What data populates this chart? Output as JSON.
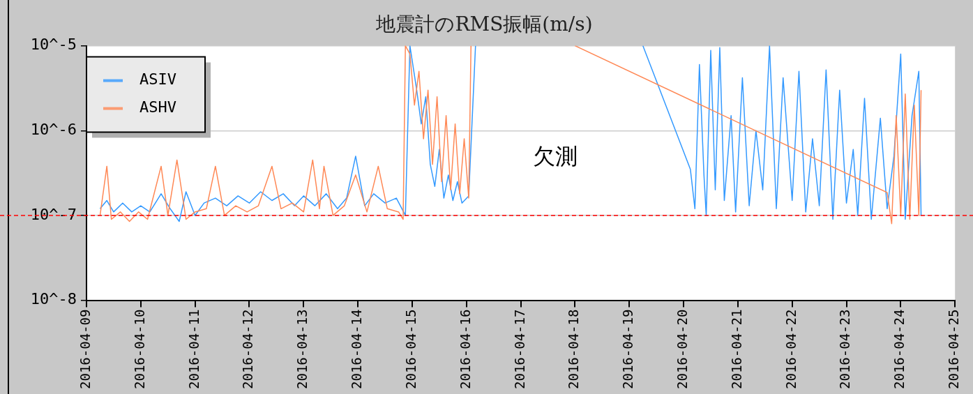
{
  "chart_data": {
    "type": "line",
    "title": "地震計のRMS振幅(m/s)",
    "xlim": [
      "2016-04-09",
      "2016-04-25"
    ],
    "xticks": [
      "2016-04-09",
      "2016-04-10",
      "2016-04-11",
      "2016-04-12",
      "2016-04-13",
      "2016-04-14",
      "2016-04-15",
      "2016-04-16",
      "2016-04-17",
      "2016-04-18",
      "2016-04-19",
      "2016-04-20",
      "2016-04-21",
      "2016-04-22",
      "2016-04-23",
      "2016-04-24",
      "2016-04-25"
    ],
    "ylim": [
      1e-08,
      1e-05
    ],
    "yticks": [
      {
        "value": 1e-08,
        "label": "10^-8"
      },
      {
        "value": 1e-07,
        "label": "10^-7"
      },
      {
        "value": 1e-06,
        "label": "10^-6"
      },
      {
        "value": 1e-05,
        "label": "10^-5"
      }
    ],
    "log": "y",
    "grid": "y",
    "legend": "top left",
    "marker": "none",
    "line_style": "solid",
    "series": [
      {
        "name": "ASIV",
        "color": "#3399ff",
        "x": [
          "2016-04-09T06:00",
          "2016-04-09T09:00",
          "2016-04-09T12:00",
          "2016-04-09T16:00",
          "2016-04-09T20:00",
          "2016-04-10T00:00",
          "2016-04-10T04:00",
          "2016-04-10T09:00",
          "2016-04-10T13:00",
          "2016-04-10T17:00",
          "2016-04-10T20:00",
          "2016-04-11T00:00",
          "2016-04-11T04:00",
          "2016-04-11T09:00",
          "2016-04-11T14:00",
          "2016-04-11T19:00",
          "2016-04-12T00:00",
          "2016-04-12T05:00",
          "2016-04-12T10:00",
          "2016-04-12T15:00",
          "2016-04-12T20:00",
          "2016-04-13T00:00",
          "2016-04-13T05:00",
          "2016-04-13T10:00",
          "2016-04-13T15:00",
          "2016-04-13T19:00",
          "2016-04-13T23:00",
          "2016-04-14T03:00",
          "2016-04-14T07:00",
          "2016-04-14T12:00",
          "2016-04-14T17:00",
          "2016-04-14T21:00",
          "2016-04-14T23:00",
          "2016-04-15T02:00",
          "2016-04-15T04:00",
          "2016-04-15T06:00",
          "2016-04-15T08:00",
          "2016-04-15T10:00",
          "2016-04-15T12:00",
          "2016-04-15T14:00",
          "2016-04-15T16:00",
          "2016-04-15T18:00",
          "2016-04-15T20:00",
          "2016-04-15T22:00",
          "2016-04-16T01:00",
          "2016-04-16T04:00",
          "2016-04-17T12:00",
          "2016-04-19T06:00",
          "2016-04-20T03:00",
          "2016-04-20T05:00",
          "2016-04-20T07:00",
          "2016-04-20T09:00",
          "2016-04-20T10:00",
          "2016-04-20T12:00",
          "2016-04-20T14:00",
          "2016-04-20T16:00",
          "2016-04-20T18:00",
          "2016-04-20T21:00",
          "2016-04-20T23:00",
          "2016-04-21T02:00",
          "2016-04-21T05:00",
          "2016-04-21T08:00",
          "2016-04-21T11:00",
          "2016-04-21T14:00",
          "2016-04-21T17:00",
          "2016-04-21T20:00",
          "2016-04-22T00:00",
          "2016-04-22T03:00",
          "2016-04-22T06:00",
          "2016-04-22T09:00",
          "2016-04-22T12:00",
          "2016-04-22T15:00",
          "2016-04-22T18:00",
          "2016-04-22T21:00",
          "2016-04-23T00:00",
          "2016-04-23T03:00",
          "2016-04-23T05:00",
          "2016-04-23T08:00",
          "2016-04-23T11:00",
          "2016-04-23T15:00",
          "2016-04-23T18:00",
          "2016-04-23T21:00",
          "2016-04-24T00:00",
          "2016-04-24T02:00",
          "2016-04-24T05:00",
          "2016-04-24T08:00",
          "2016-04-24T09:00"
        ],
        "values": [
          1.2e-07,
          1.5e-07,
          1.1e-07,
          1.4e-07,
          1.1e-07,
          1.3e-07,
          1.1e-07,
          1.8e-07,
          1.2e-07,
          8.5e-08,
          1.9e-07,
          1e-07,
          1.4e-07,
          1.6e-07,
          1.3e-07,
          1.7e-07,
          1.4e-07,
          1.9e-07,
          1.5e-07,
          1.8e-07,
          1.3e-07,
          1.7e-07,
          1.3e-07,
          1.8e-07,
          1.2e-07,
          1.6e-07,
          5e-07,
          1.3e-07,
          1.8e-07,
          1.4e-07,
          1.6e-07,
          1e-07,
          1e-05,
          3e-06,
          1.2e-06,
          2.5e-06,
          4e-07,
          2.2e-07,
          6e-07,
          1.6e-07,
          3e-07,
          1.5e-07,
          2.5e-07,
          1.4e-07,
          1.7e-07,
          1e-05,
          null,
          1e-05,
          3.5e-07,
          1.2e-07,
          6e-06,
          3e-07,
          1e-07,
          8.8e-06,
          2e-07,
          9.5e-06,
          1.5e-07,
          1.5e-06,
          1.1e-07,
          4.2e-06,
          1.3e-07,
          1e-06,
          2e-07,
          1e-05,
          1.2e-07,
          4.2e-06,
          1.5e-07,
          5e-06,
          1.1e-07,
          8e-07,
          1.3e-07,
          5.2e-06,
          9e-08,
          3e-06,
          1.4e-07,
          6e-07,
          1e-07,
          2.4e-06,
          9e-08,
          1.4e-06,
          1.2e-07,
          5e-07,
          8e-06,
          9e-08,
          1.5e-06,
          5e-06,
          1e-07
        ]
      },
      {
        "name": "ASHV",
        "color": "#ff8855",
        "x": [
          "2016-04-09T06:00",
          "2016-04-09T09:00",
          "2016-04-09T11:00",
          "2016-04-09T15:00",
          "2016-04-09T19:00",
          "2016-04-09T23:00",
          "2016-04-10T03:00",
          "2016-04-10T09:00",
          "2016-04-10T12:00",
          "2016-04-10T16:00",
          "2016-04-10T20:00",
          "2016-04-11T00:00",
          "2016-04-11T05:00",
          "2016-04-11T09:00",
          "2016-04-11T13:00",
          "2016-04-11T18:00",
          "2016-04-11T23:00",
          "2016-04-12T04:00",
          "2016-04-12T10:00",
          "2016-04-12T14:00",
          "2016-04-12T19:00",
          "2016-04-13T00:00",
          "2016-04-13T04:00",
          "2016-04-13T07:00",
          "2016-04-13T09:00",
          "2016-04-13T13:00",
          "2016-04-13T18:00",
          "2016-04-13T23:00",
          "2016-04-14T04:00",
          "2016-04-14T09:00",
          "2016-04-14T13:00",
          "2016-04-14T18:00",
          "2016-04-14T20:00",
          "2016-04-14T21:00",
          "2016-04-14T23:00",
          "2016-04-15T01:00",
          "2016-04-15T03:00",
          "2016-04-15T05:00",
          "2016-04-15T07:00",
          "2016-04-15T09:00",
          "2016-04-15T11:00",
          "2016-04-15T13:00",
          "2016-04-15T15:00",
          "2016-04-15T17:00",
          "2016-04-15T19:00",
          "2016-04-15T21:00",
          "2016-04-15T23:00",
          "2016-04-16T01:00",
          "2016-04-16T02:00",
          "2016-04-17T00:00",
          "2016-04-18T00:00",
          "2016-04-23T18:00",
          "2016-04-23T20:00",
          "2016-04-23T22:00",
          "2016-04-24T00:00",
          "2016-04-24T02:00",
          "2016-04-24T04:00",
          "2016-04-24T06:00",
          "2016-04-24T08:00",
          "2016-04-24T09:00"
        ],
        "values": [
          1e-07,
          3.8e-07,
          9e-08,
          1.1e-07,
          8.5e-08,
          1.1e-07,
          9e-08,
          3.8e-07,
          1e-07,
          4.5e-07,
          9e-08,
          1.1e-07,
          1.2e-07,
          3.8e-07,
          1e-07,
          1.3e-07,
          1.1e-07,
          1.3e-07,
          3.8e-07,
          1.2e-07,
          1.4e-07,
          1.1e-07,
          4.5e-07,
          1.2e-07,
          3.8e-07,
          1e-07,
          1.3e-07,
          3e-07,
          1.1e-07,
          3.8e-07,
          1.2e-07,
          1.1e-07,
          9e-08,
          1e-05,
          8e-06,
          2e-06,
          5e-06,
          8e-07,
          3e-06,
          4e-07,
          2.5e-06,
          2.5e-07,
          1.5e-06,
          2e-07,
          1.2e-06,
          1.8e-07,
          8e-07,
          1.6e-07,
          1e-05,
          null,
          1e-05,
          1.86e-07,
          8e-08,
          1.5e-06,
          1e-07,
          2.7e-06,
          9e-08,
          2e-06,
          1e-07,
          3e-06
        ]
      }
    ],
    "ref_lines": [
      {
        "axis": "y",
        "value": 1e-07,
        "color": "#ff0000",
        "line_style": "dashed"
      }
    ],
    "annotations": [
      "欠測"
    ]
  }
}
